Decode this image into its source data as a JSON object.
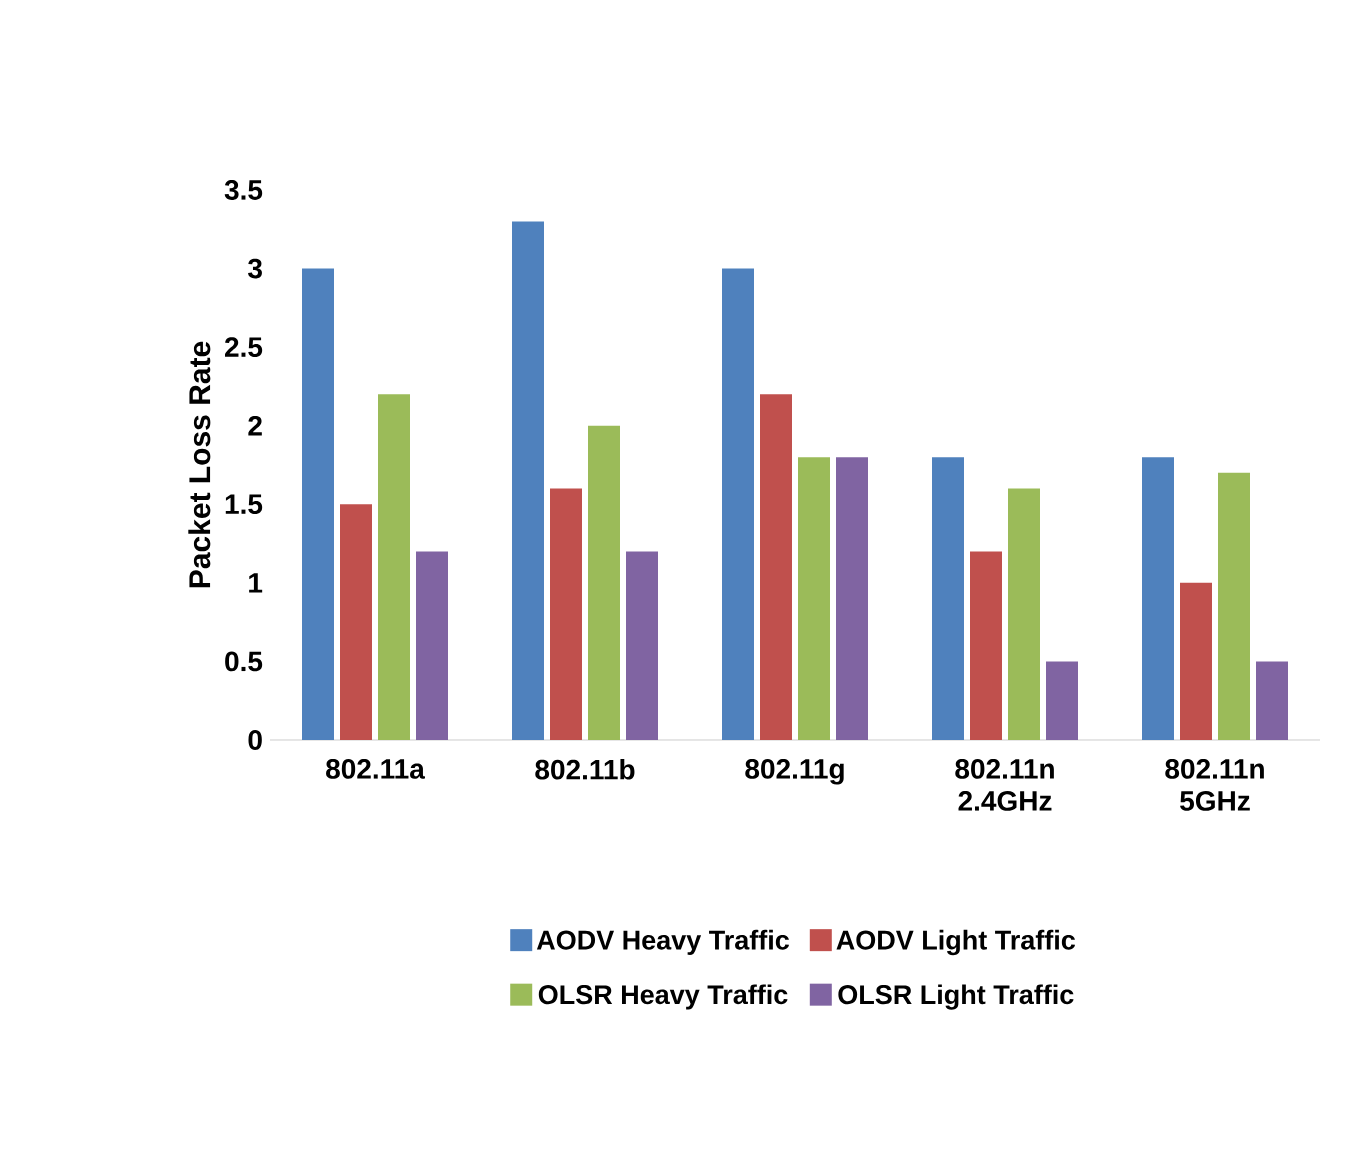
{
  "chart_data": {
    "type": "bar",
    "ylabel": "Packet Loss Rate",
    "categories": [
      "802.11a",
      "802.11b",
      "802.11g",
      "802.11n 2.4GHz",
      "802.11n 5GHz"
    ],
    "series": [
      {
        "name": "AODV Heavy Traffic",
        "color": "#4f81bd",
        "values": [
          3.0,
          3.3,
          3.0,
          1.8,
          1.8
        ]
      },
      {
        "name": "AODV Light Traffic",
        "color": "#c0504d",
        "values": [
          1.5,
          1.6,
          2.2,
          1.2,
          1.0
        ]
      },
      {
        "name": "OLSR Heavy Traffic",
        "color": "#9bbb59",
        "values": [
          2.2,
          2.0,
          1.8,
          1.6,
          1.7
        ]
      },
      {
        "name": "OLSR Light Traffic",
        "color": "#8064a2",
        "values": [
          1.2,
          1.2,
          1.8,
          0.5,
          0.5
        ]
      }
    ],
    "ylim": [
      0,
      3.5
    ],
    "yticks": [
      0,
      0.5,
      1,
      1.5,
      2,
      2.5,
      3,
      3.5
    ],
    "legend": "bottom"
  }
}
